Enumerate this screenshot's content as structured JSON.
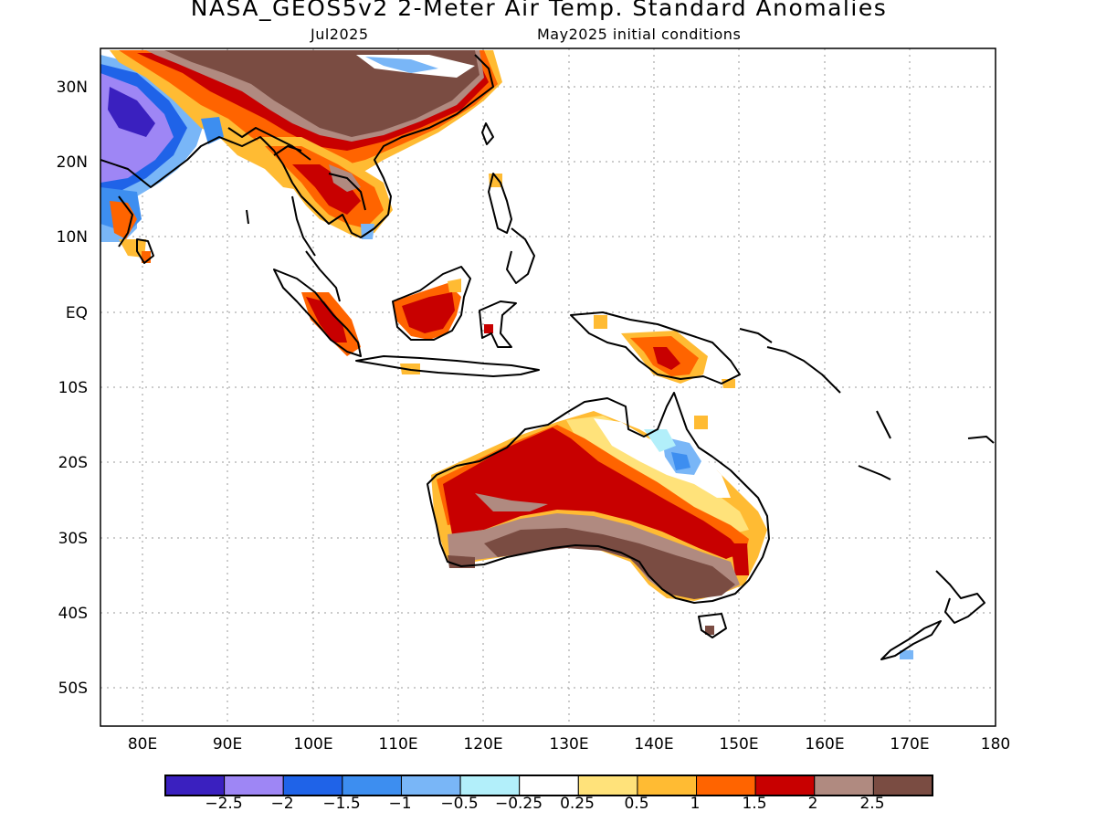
{
  "header": {
    "title": "NASA_GEOS5v2 2-Meter Air Temp. Standard Anomalies",
    "valid_month": "Jul2025",
    "init_note": "May2025 initial conditions"
  },
  "map": {
    "lon_range": [
      75,
      180
    ],
    "lat_range": [
      -55,
      35
    ],
    "lon_ticks": [
      "80E",
      "90E",
      "100E",
      "110E",
      "120E",
      "130E",
      "140E",
      "150E",
      "160E",
      "170E",
      "180"
    ],
    "lat_ticks": [
      "30N",
      "20N",
      "10N",
      "EQ",
      "10S",
      "20S",
      "30S",
      "40S",
      "50S"
    ],
    "gridlines": "dotted"
  },
  "colorbar": {
    "colors": [
      "#3a20bf",
      "#9e86f5",
      "#1f63e8",
      "#3d8ef0",
      "#79b6f7",
      "#b2effa",
      "#ffffff",
      "#ffe27a",
      "#ffbb33",
      "#ff6400",
      "#c80000",
      "#b08a80",
      "#7a4c42"
    ],
    "labels": [
      "-2.5",
      "-2",
      "-1.5",
      "-1",
      "-0.5",
      "-0.25",
      "0.25",
      "0.5",
      "1",
      "1.5",
      "2",
      "2.5"
    ]
  }
}
